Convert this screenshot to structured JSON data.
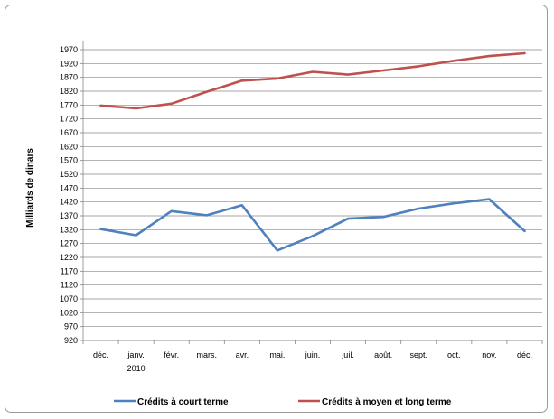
{
  "chart_data": {
    "type": "line",
    "title": "",
    "xlabel": "",
    "ylabel": "Milliards de dinars",
    "ylim": [
      920,
      1970
    ],
    "ytick_step": 50,
    "grid": true,
    "legend_position": "bottom",
    "categories": [
      "déc.",
      "janv.",
      "févr.",
      "mars.",
      "avr.",
      "mai.",
      "juin.",
      "juil.",
      "août.",
      "sept.",
      "oct.",
      "nov.",
      "déc."
    ],
    "category_sublabels": {
      "1": "2010"
    },
    "series": [
      {
        "name": "Crédits à court terme",
        "color": "#4f81bd",
        "values": [
          1322,
          1300,
          1387,
          1372,
          1408,
          1245,
          1297,
          1360,
          1366,
          1396,
          1415,
          1430,
          1315
        ]
      },
      {
        "name": "Crédits à moyen et long terme",
        "color": "#c0504d",
        "values": [
          1768,
          1758,
          1775,
          1818,
          1858,
          1866,
          1890,
          1880,
          1895,
          1910,
          1930,
          1947,
          1957
        ]
      }
    ]
  }
}
